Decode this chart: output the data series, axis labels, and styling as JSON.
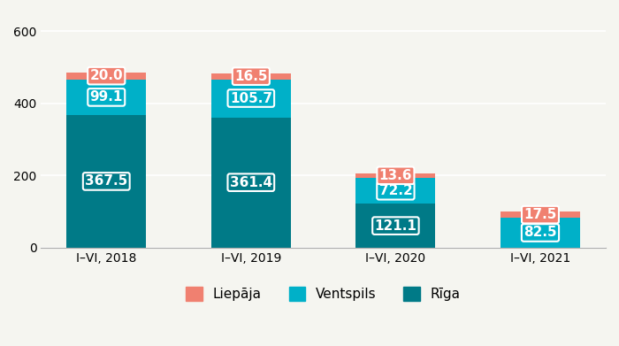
{
  "categories": [
    "I–VI, 2018",
    "I–VI, 2019",
    "I–VI, 2020",
    "I–VI, 2021"
  ],
  "riga": [
    367.5,
    361.4,
    121.1,
    0
  ],
  "ventspils": [
    99.1,
    105.7,
    72.2,
    82.5
  ],
  "liepaja": [
    20.0,
    16.5,
    13.6,
    17.5
  ],
  "riga_color": "#007a87",
  "ventspils_color": "#00b0c8",
  "liepaja_color": "#f08070",
  "background_color": "#f5f5f0",
  "ylim": [
    0,
    650
  ],
  "yticks": [
    0,
    200,
    400,
    600
  ],
  "legend_labels": [
    "Liepāja",
    "Ventspils",
    "Rīga"
  ],
  "bar_width": 0.55,
  "label_fontsize": 11,
  "tick_fontsize": 10,
  "legend_fontsize": 11
}
